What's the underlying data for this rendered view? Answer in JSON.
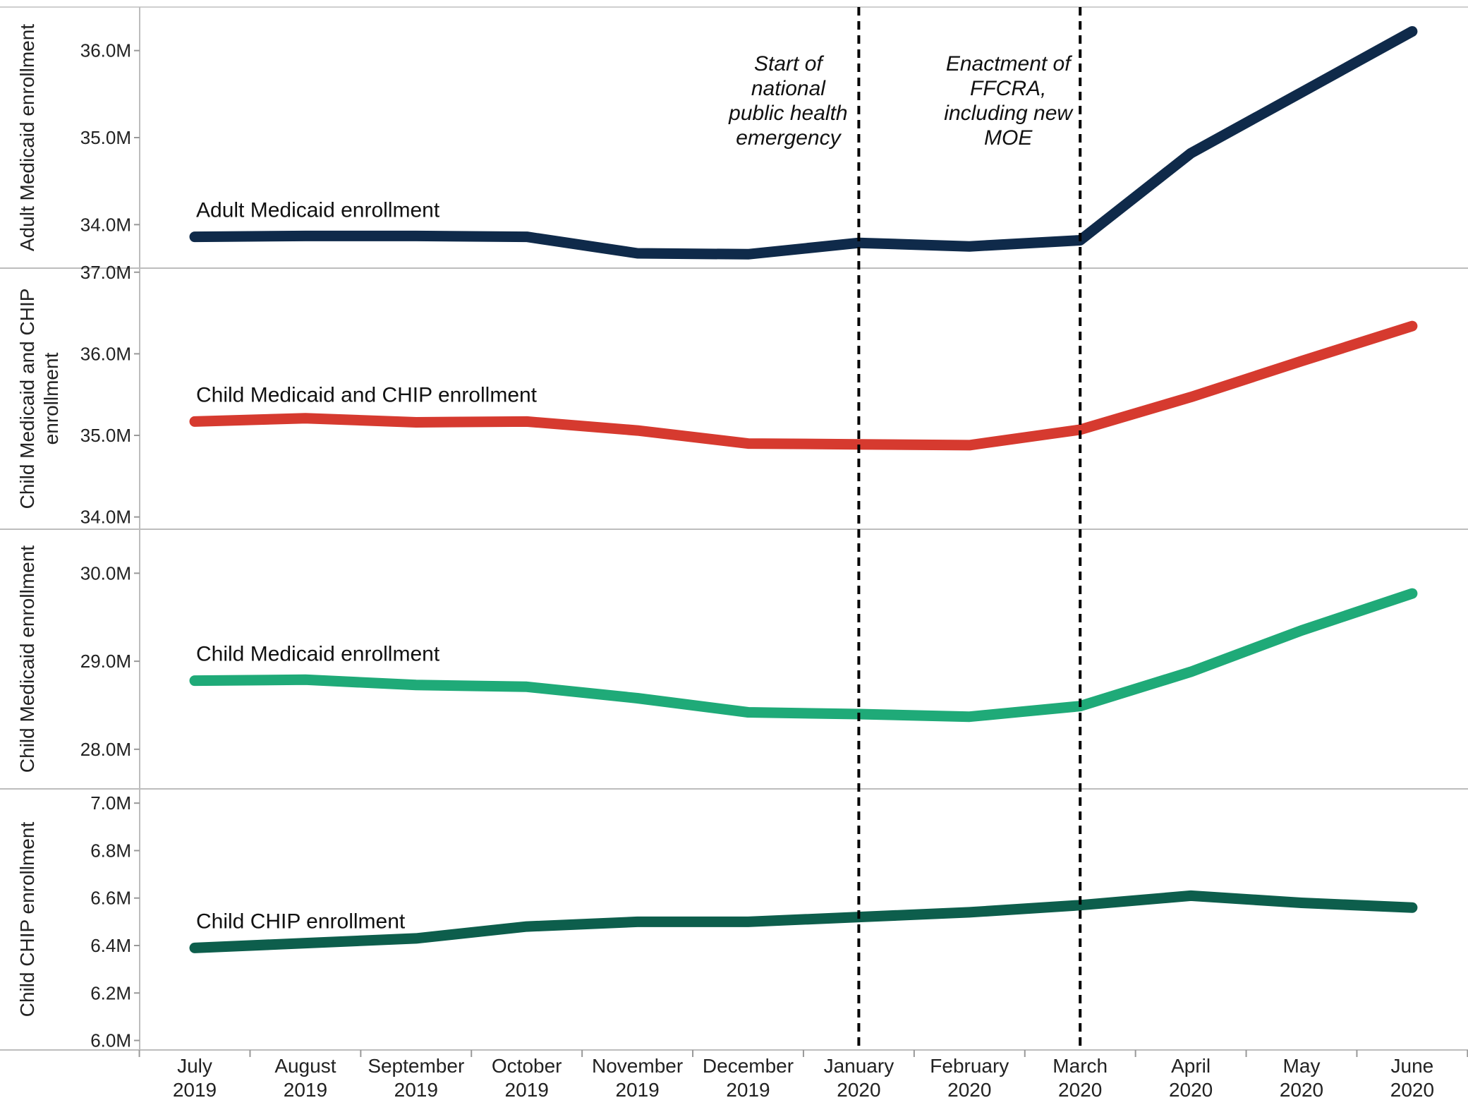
{
  "chart_data": {
    "type": "line",
    "categories": [
      [
        "July",
        "2019"
      ],
      [
        "August",
        "2019"
      ],
      [
        "September",
        "2019"
      ],
      [
        "October",
        "2019"
      ],
      [
        "November",
        "2019"
      ],
      [
        "December",
        "2019"
      ],
      [
        "January",
        "2020"
      ],
      [
        "February",
        "2020"
      ],
      [
        "March",
        "2020"
      ],
      [
        "April",
        "2020"
      ],
      [
        "May",
        "2020"
      ],
      [
        "June",
        "2020"
      ]
    ],
    "panels": [
      {
        "ylabel": [
          "Adult Medicaid enrollment"
        ],
        "series_label": "Adult Medicaid enrollment",
        "color": "#0f2a4a",
        "ylim": [
          33.5,
          36.5
        ],
        "ticks": [
          34.0,
          35.0,
          36.0
        ],
        "tick_labels": [
          "34.0M",
          "35.0M",
          "36.0M"
        ],
        "values": [
          33.86,
          33.87,
          33.87,
          33.86,
          33.67,
          33.66,
          33.79,
          33.75,
          33.82,
          34.82,
          35.52,
          36.22
        ]
      },
      {
        "ylabel": [
          "Child Medicaid and CHIP",
          "enrollment"
        ],
        "series_label": "Child Medicaid and CHIP enrollment",
        "color": "#d63a2f",
        "ylim": [
          33.85,
          37.05
        ],
        "ticks": [
          34.0,
          35.0,
          36.0,
          37.0
        ],
        "tick_labels": [
          "34.0M",
          "35.0M",
          "36.0M",
          "37.0M"
        ],
        "values": [
          35.17,
          35.21,
          35.16,
          35.17,
          35.06,
          34.9,
          34.89,
          34.88,
          35.07,
          35.47,
          35.91,
          36.34
        ]
      },
      {
        "ylabel": [
          "Child Medicaid enrollment"
        ],
        "series_label": "Child Medicaid enrollment",
        "color": "#1faa78",
        "ylim": [
          27.55,
          30.5
        ],
        "ticks": [
          28.0,
          29.0,
          30.0
        ],
        "tick_labels": [
          "28.0M",
          "29.0M",
          "30.0M"
        ],
        "values": [
          28.78,
          28.79,
          28.73,
          28.71,
          28.58,
          28.42,
          28.4,
          28.37,
          28.49,
          28.88,
          29.35,
          29.77
        ]
      },
      {
        "ylabel": [
          "Child CHIP enrollment"
        ],
        "series_label": "Child CHIP enrollment",
        "color": "#0d5e4c",
        "ylim": [
          5.96,
          7.06
        ],
        "ticks": [
          6.0,
          6.2,
          6.4,
          6.6,
          6.8,
          7.0
        ],
        "tick_labels": [
          "6.0M",
          "6.2M",
          "6.4M",
          "6.6M",
          "6.8M",
          "7.0M"
        ],
        "values": [
          6.39,
          6.41,
          6.43,
          6.48,
          6.5,
          6.5,
          6.52,
          6.54,
          6.57,
          6.61,
          6.58,
          6.56
        ]
      }
    ],
    "annotations": [
      {
        "at_index": 6,
        "lines": [
          "Start of",
          "national",
          "public health",
          "emergency"
        ]
      },
      {
        "at_index": 8,
        "lines": [
          "Enactment of",
          "FFCRA,",
          "including new",
          "MOE"
        ]
      }
    ]
  }
}
